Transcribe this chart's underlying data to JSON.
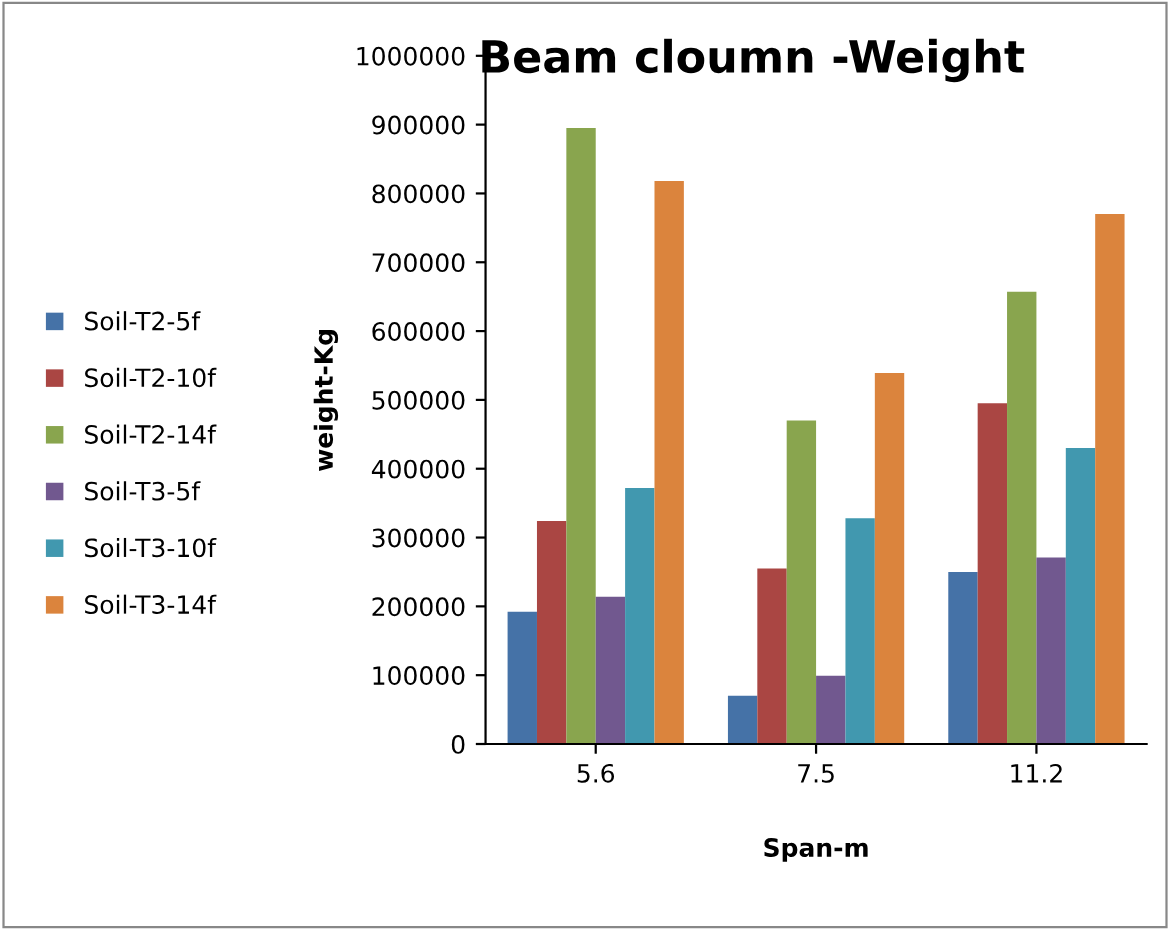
{
  "chart_data": {
    "type": "bar",
    "title": "Beam cloumn -Weight",
    "xlabel": "Span-m",
    "ylabel": "weight-Kg",
    "categories": [
      "5.6",
      "7.5",
      "11.2"
    ],
    "series": [
      {
        "name": "Soil-T2-5f",
        "color": "#4572a7",
        "values": [
          192000,
          70000,
          250000
        ]
      },
      {
        "name": "Soil-T2-10f",
        "color": "#aa4643",
        "values": [
          324000,
          255000,
          495000
        ]
      },
      {
        "name": "Soil-T2-14f",
        "color": "#89a54e",
        "values": [
          895000,
          470000,
          657000
        ]
      },
      {
        "name": "Soil-T3-5f",
        "color": "#71588f",
        "values": [
          214000,
          99000,
          271000
        ]
      },
      {
        "name": "Soil-T3-10f",
        "color": "#4198af",
        "values": [
          372000,
          328000,
          430000
        ]
      },
      {
        "name": "Soil-T3-14f",
        "color": "#db843d",
        "values": [
          818000,
          539000,
          770000
        ]
      }
    ],
    "ylim": [
      0,
      1000000
    ],
    "yticks": [
      0,
      100000,
      200000,
      300000,
      400000,
      500000,
      600000,
      700000,
      800000,
      900000,
      1000000
    ],
    "grid": false,
    "legend": "left"
  }
}
